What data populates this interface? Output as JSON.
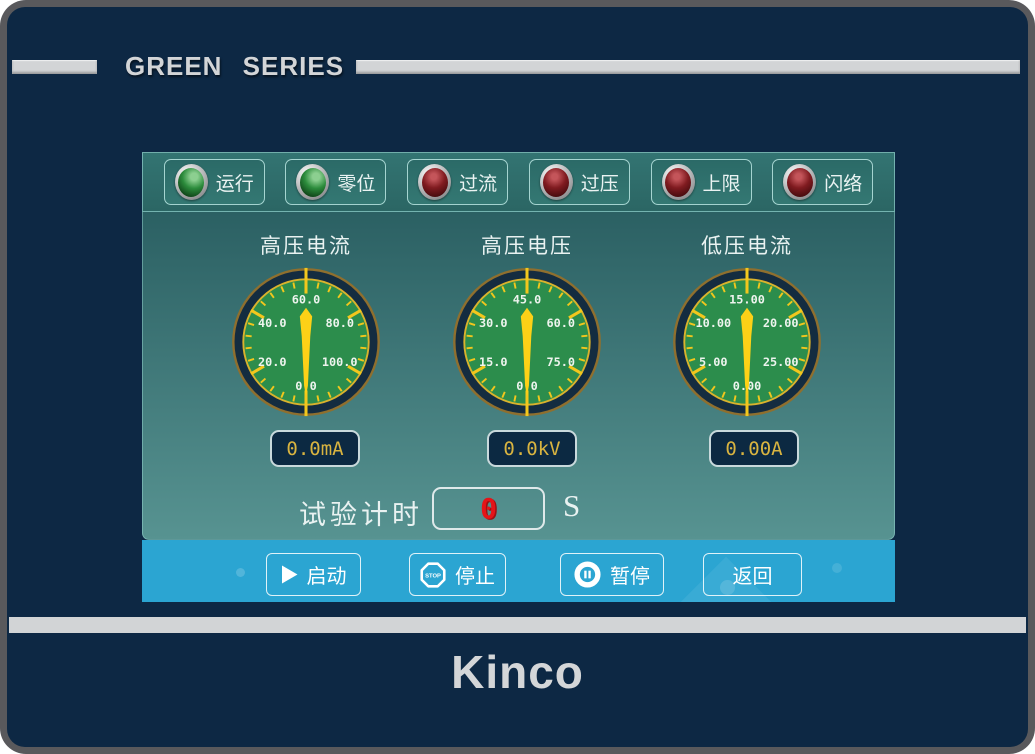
{
  "header": {
    "title": "GREEN SERIES"
  },
  "brand": {
    "logo": "Kinco"
  },
  "indicators": [
    {
      "label": "运行",
      "color": "green"
    },
    {
      "label": "零位",
      "color": "green"
    },
    {
      "label": "过流",
      "color": "red"
    },
    {
      "label": "过压",
      "color": "red"
    },
    {
      "label": "上限",
      "color": "red"
    },
    {
      "label": "闪络",
      "color": "red"
    }
  ],
  "gauges": [
    {
      "title": "高压电流",
      "scale_labels": [
        "0.0",
        "20.0",
        "40.0",
        "60.0",
        "80.0",
        "100.0"
      ],
      "min": 0,
      "max": 100,
      "value": 0,
      "readout": "0.0mA"
    },
    {
      "title": "高压电压",
      "scale_labels": [
        "0.0",
        "15.0",
        "30.0",
        "45.0",
        "60.0",
        "75.0"
      ],
      "min": 0,
      "max": 75,
      "value": 0,
      "readout": "0.0kV"
    },
    {
      "title": "低压电流",
      "scale_labels": [
        "0.00",
        "5.00",
        "10.00",
        "15.00",
        "20.00",
        "25.00"
      ],
      "min": 0,
      "max": 25,
      "value": 0,
      "readout": "0.00A"
    }
  ],
  "timer": {
    "label": "试验计时",
    "value": "0",
    "unit": "S"
  },
  "buttons": [
    {
      "label": "启动",
      "icon": "play-icon"
    },
    {
      "label": "停止",
      "icon": "stop-icon",
      "icon_text": "STOP"
    },
    {
      "label": "暂停",
      "icon": "pause-icon"
    },
    {
      "label": "返回",
      "icon": null
    }
  ],
  "colors": {
    "bezel_navy": "#0d2844",
    "frame_gray": "#59595c",
    "header_gray": "#d2d4d6",
    "screen_teal_top": "#2b6063",
    "screen_teal_bottom": "#579391",
    "button_bar_blue": "#2ba5d2",
    "gauge_face_green": "#2c8d4c",
    "gauge_tick_yellow": "#f2c71d",
    "needle_yellow": "#fdd117",
    "readout_text_gold": "#d9b440",
    "timer_value_red": "#e51418",
    "lamp_on_green": "#2c8c3c",
    "lamp_alarm_red": "#801b20"
  }
}
